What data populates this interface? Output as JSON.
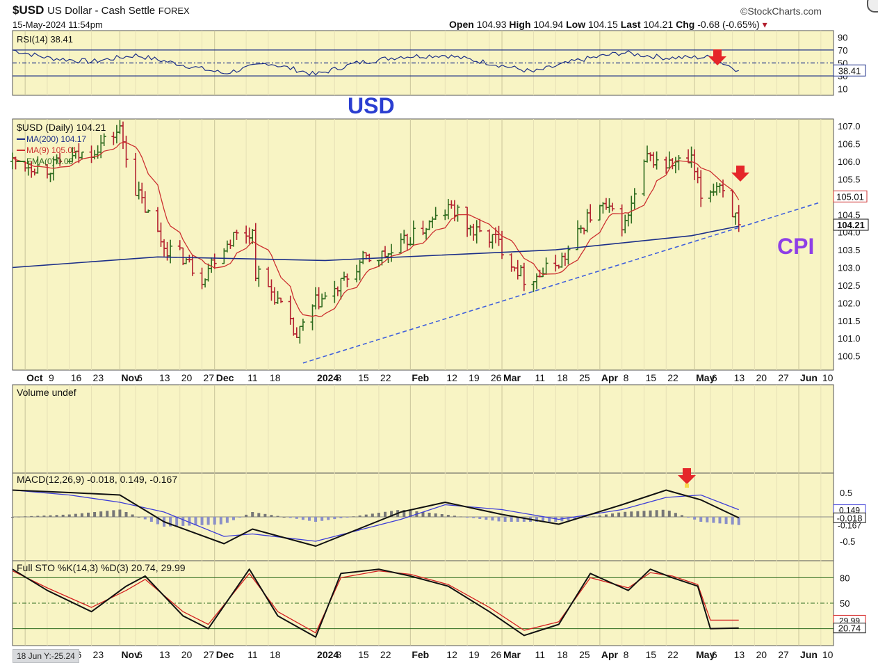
{
  "header": {
    "symbol": "$USD",
    "name": "US Dollar - Cash Settle",
    "exchange": "FOREX",
    "watermark": "©StockCharts.com",
    "datetime": "15-May-2024 11:54pm",
    "open_label": "Open",
    "open": "104.93",
    "high_label": "High",
    "high": "104.94",
    "low_label": "Low",
    "low": "104.15",
    "last_label": "Last",
    "last": "104.21",
    "chg_label": "Chg",
    "chg": "-0.68 (-0.65%)"
  },
  "annotations": {
    "usd": "USD",
    "cpi": "CPI"
  },
  "footer": {
    "crosshair": "18 Jun Y:-25.24"
  },
  "colors": {
    "bg": "#f8f4c4",
    "up": "#2e6b1e",
    "down": "#b3202f",
    "ma200": "#1c2f88",
    "ma9": "#cc3030",
    "arrow": "#e5262a",
    "trend": "#3f5fdc",
    "usd": "#2a3ed1",
    "cpi": "#8e3fe6"
  },
  "chart_data": [
    {
      "type": "line",
      "title": "RSI(14) 38.41",
      "levels": [
        70,
        50,
        30
      ],
      "ylim": [
        0,
        100
      ],
      "yticks": [
        90,
        70,
        50,
        30,
        10
      ],
      "x": [
        "2023-09-28",
        "2023-10-09",
        "2023-10-23",
        "2023-11-06",
        "2023-11-20",
        "2023-12-04",
        "2023-12-18",
        "2024-01-02",
        "2024-01-15",
        "2024-01-29",
        "2024-02-12",
        "2024-02-26",
        "2024-03-11",
        "2024-03-25",
        "2024-04-08",
        "2024-04-22",
        "2024-05-06",
        "2024-05-15"
      ],
      "values": [
        70,
        58,
        52,
        62,
        48,
        34,
        50,
        32,
        50,
        60,
        62,
        50,
        36,
        54,
        66,
        58,
        59,
        38.41
      ],
      "last_label": "38.41"
    },
    {
      "type": "ohlc",
      "title": "$USD (Daily) 104.21",
      "legend": [
        {
          "label": "MA(200) 104.17",
          "color": "#1c2f88"
        },
        {
          "label": "MA(9) 105.01",
          "color": "#cc3030"
        },
        {
          "label": "EMA(0) 0.00",
          "color": "#2e6b1e"
        }
      ],
      "ylim": [
        100.1,
        107.2
      ],
      "yticks": [
        "107.0",
        "106.5",
        "106.0",
        "105.5",
        "105.0",
        "104.5",
        "104.0",
        "103.5",
        "103.0",
        "102.5",
        "102.0",
        "101.5",
        "101.0",
        "100.5"
      ],
      "price_x": [
        "2023-09-28",
        "2023-10-09",
        "2023-10-23",
        "2023-11-01",
        "2023-11-06",
        "2023-11-15",
        "2023-11-21",
        "2023-11-27",
        "2023-12-01",
        "2023-12-07",
        "2023-12-13",
        "2023-12-14",
        "2023-12-20",
        "2023-12-27",
        "2024-01-02",
        "2024-01-08",
        "2024-01-17",
        "2024-01-26",
        "2024-02-02",
        "2024-02-14",
        "2024-02-21",
        "2024-02-28",
        "2024-03-08",
        "2024-03-13",
        "2024-03-21",
        "2024-03-28",
        "2024-04-02",
        "2024-04-09",
        "2024-04-16",
        "2024-04-22",
        "2024-04-30",
        "2024-05-03",
        "2024-05-09",
        "2024-05-15"
      ],
      "close": [
        106.0,
        105.8,
        106.3,
        106.9,
        105.2,
        103.6,
        103.3,
        102.7,
        103.3,
        103.9,
        104.0,
        102.9,
        102.2,
        101.0,
        102.0,
        102.3,
        103.2,
        103.4,
        103.9,
        104.7,
        104.0,
        103.8,
        102.7,
        102.8,
        103.3,
        104.4,
        104.7,
        104.2,
        106.1,
        105.9,
        106.0,
        105.0,
        105.4,
        104.21
      ],
      "ma200": {
        "x": [
          "2023-09-28",
          "2023-11-13",
          "2024-01-05",
          "2024-03-18",
          "2024-04-30",
          "2024-05-15"
        ],
        "values": [
          103.0,
          103.3,
          103.2,
          103.5,
          103.9,
          104.17
        ]
      },
      "ma9_last": 105.01,
      "last_label": "104.21",
      "ma9_label": "105.01",
      "trendline": {
        "x": [
          "2023-12-29",
          "2024-06-10"
        ],
        "values": [
          100.3,
          104.85
        ]
      },
      "arrows": [
        "2024-05-15"
      ]
    },
    {
      "type": "bar",
      "title": "Volume undef",
      "values": []
    },
    {
      "type": "line",
      "title": "MACD(12,26,9) -0.018, 0.149, -0.167",
      "legend_values": [
        "-0.018",
        "0.149",
        "-0.167"
      ],
      "ylim": [
        -0.9,
        0.9
      ],
      "yticks": [
        "0.5",
        "-0.5"
      ],
      "x": [
        "2023-09-28",
        "2023-10-16",
        "2023-11-01",
        "2023-11-15",
        "2023-12-04",
        "2023-12-13",
        "2024-01-02",
        "2024-01-29",
        "2024-02-12",
        "2024-03-01",
        "2024-03-19",
        "2024-04-08",
        "2024-04-22",
        "2024-05-03",
        "2024-05-15"
      ],
      "macd": [
        0.55,
        0.5,
        0.45,
        -0.1,
        -0.55,
        -0.25,
        -0.6,
        0.1,
        0.3,
        0.05,
        -0.15,
        0.25,
        0.55,
        0.35,
        -0.018
      ],
      "signal": [
        0.55,
        0.45,
        0.3,
        0.1,
        -0.4,
        -0.35,
        -0.5,
        -0.05,
        0.25,
        0.15,
        -0.05,
        0.15,
        0.4,
        0.45,
        0.149
      ],
      "hist": [
        0.0,
        0.05,
        0.15,
        -0.2,
        -0.15,
        0.1,
        -0.1,
        0.15,
        0.05,
        -0.1,
        -0.1,
        0.1,
        0.15,
        -0.1,
        -0.167
      ],
      "value_labels": [
        "0.149",
        "-0.018",
        "-0.167"
      ],
      "arrows": [
        "2024-05-03"
      ]
    },
    {
      "type": "line",
      "title": "Full STO %K(14,3) %D(3) 20.74, 29.99",
      "legend_values": [
        "20.74",
        "29.99"
      ],
      "ylim": [
        0,
        100
      ],
      "levels": [
        80,
        50,
        20
      ],
      "yticks": [
        "80",
        "50"
      ],
      "x": [
        "2023-09-28",
        "2023-10-09",
        "2023-10-23",
        "2023-11-03",
        "2023-11-09",
        "2023-11-21",
        "2023-11-29",
        "2023-12-12",
        "2023-12-21",
        "2024-01-02",
        "2024-01-10",
        "2024-01-22",
        "2024-02-01",
        "2024-02-13",
        "2024-02-26",
        "2024-03-08",
        "2024-03-19",
        "2024-03-29",
        "2024-04-10",
        "2024-04-17",
        "2024-04-24",
        "2024-05-02",
        "2024-05-06",
        "2024-05-15"
      ],
      "k": [
        90,
        65,
        40,
        70,
        82,
        35,
        20,
        90,
        35,
        10,
        85,
        90,
        82,
        70,
        40,
        12,
        25,
        85,
        65,
        90,
        80,
        70,
        20,
        20.74
      ],
      "d": [
        88,
        68,
        45,
        65,
        78,
        40,
        25,
        85,
        40,
        15,
        80,
        88,
        84,
        72,
        45,
        18,
        28,
        80,
        68,
        86,
        82,
        72,
        30,
        29.99
      ],
      "value_labels": [
        "29.99",
        "20.74"
      ]
    }
  ],
  "x_axis": {
    "ticks": [
      {
        "date": "2023-10-02",
        "label": "Oct",
        "bold": true
      },
      {
        "date": "2023-10-09",
        "label": "9",
        "bold": false
      },
      {
        "date": "2023-10-16",
        "label": "16",
        "bold": false
      },
      {
        "date": "2023-10-23",
        "label": "23",
        "bold": false
      },
      {
        "date": "2023-11-01",
        "label": "Nov",
        "bold": true
      },
      {
        "date": "2023-11-06",
        "label": "6",
        "bold": false
      },
      {
        "date": "2023-11-13",
        "label": "13",
        "bold": false
      },
      {
        "date": "2023-11-20",
        "label": "20",
        "bold": false
      },
      {
        "date": "2023-11-27",
        "label": "27",
        "bold": false
      },
      {
        "date": "2023-12-01",
        "label": "Dec",
        "bold": true
      },
      {
        "date": "2023-12-11",
        "label": "11",
        "bold": false
      },
      {
        "date": "2023-12-18",
        "label": "18",
        "bold": false
      },
      {
        "date": "2024-01-02",
        "label": "2024",
        "bold": true
      },
      {
        "date": "2024-01-08",
        "label": "8",
        "bold": false
      },
      {
        "date": "2024-01-15",
        "label": "15",
        "bold": false
      },
      {
        "date": "2024-01-22",
        "label": "22",
        "bold": false
      },
      {
        "date": "2024-02-01",
        "label": "Feb",
        "bold": true
      },
      {
        "date": "2024-02-12",
        "label": "12",
        "bold": false
      },
      {
        "date": "2024-02-19",
        "label": "19",
        "bold": false
      },
      {
        "date": "2024-02-26",
        "label": "26",
        "bold": false
      },
      {
        "date": "2024-03-01",
        "label": "Mar",
        "bold": true
      },
      {
        "date": "2024-03-11",
        "label": "11",
        "bold": false
      },
      {
        "date": "2024-03-18",
        "label": "18",
        "bold": false
      },
      {
        "date": "2024-03-25",
        "label": "25",
        "bold": false
      },
      {
        "date": "2024-04-01",
        "label": "Apr",
        "bold": true
      },
      {
        "date": "2024-04-08",
        "label": "8",
        "bold": false
      },
      {
        "date": "2024-04-15",
        "label": "15",
        "bold": false
      },
      {
        "date": "2024-04-22",
        "label": "22",
        "bold": false
      },
      {
        "date": "2024-05-01",
        "label": "May",
        "bold": true
      },
      {
        "date": "2024-05-06",
        "label": "6",
        "bold": false
      },
      {
        "date": "2024-05-13",
        "label": "13",
        "bold": false
      },
      {
        "date": "2024-05-20",
        "label": "20",
        "bold": false
      },
      {
        "date": "2024-05-27",
        "label": "27",
        "bold": false
      },
      {
        "date": "2024-06-03",
        "label": "Jun",
        "bold": true
      },
      {
        "date": "2024-06-10",
        "label": "10",
        "bold": false
      }
    ]
  }
}
